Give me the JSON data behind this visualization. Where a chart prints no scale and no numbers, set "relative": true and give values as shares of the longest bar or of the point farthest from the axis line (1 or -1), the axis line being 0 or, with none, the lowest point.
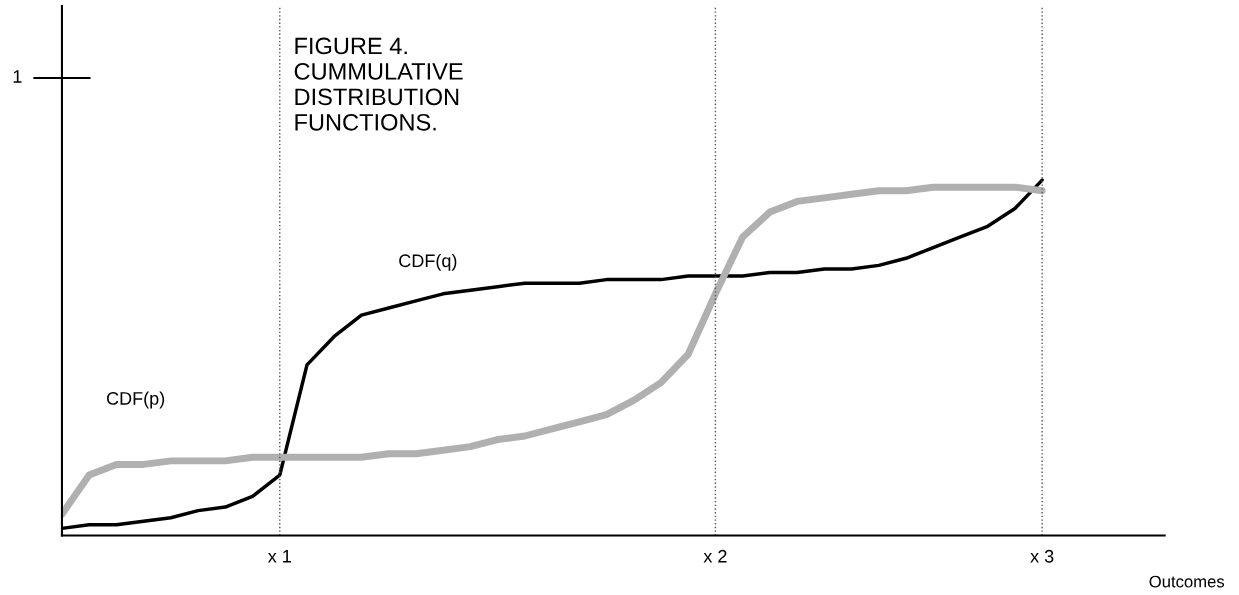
{
  "chart_data": {
    "type": "line",
    "title": "FIGURE 4.\nCUMMULATIVE\nDISTRIBUTION\nFUNCTIONS.",
    "xlabel": "Outcomes",
    "relative": true,
    "categories": [
      null,
      null,
      null,
      null,
      null,
      null,
      null,
      null,
      "x 1",
      null,
      null,
      null,
      null,
      null,
      null,
      null,
      null,
      null,
      null,
      null,
      null,
      null,
      null,
      null,
      "x 2",
      null,
      null,
      null,
      null,
      null,
      null,
      null,
      null,
      null,
      null,
      null,
      "x 3",
      null,
      null,
      null,
      null
    ],
    "grid": false,
    "legend": false,
    "marker": "none",
    "series": [
      {
        "color": "#000000",
        "line_style": "solid",
        "values": [
          0.02,
          0.03,
          0.03,
          0.04,
          0.05,
          0.07,
          0.08,
          0.11,
          0.17,
          0.48,
          0.56,
          0.62,
          0.64,
          0.66,
          0.68,
          0.69,
          0.7,
          0.71,
          0.71,
          0.71,
          0.72,
          0.72,
          0.72,
          0.73,
          0.73,
          0.73,
          0.74,
          0.74,
          0.75,
          0.75,
          0.76,
          0.78,
          0.81,
          0.84,
          0.87,
          0.92,
          1,
          null,
          null,
          null,
          null
        ]
      },
      {
        "color": "#b0b0b0",
        "line_style": "solid",
        "values": [
          0.06,
          0.17,
          0.2,
          0.2,
          0.21,
          0.21,
          0.21,
          0.22,
          0.22,
          0.22,
          0.22,
          0.22,
          0.23,
          0.23,
          0.24,
          0.25,
          0.27,
          0.28,
          0.3,
          0.32,
          0.34,
          0.38,
          0.43,
          0.51,
          0.68,
          0.84,
          0.91,
          0.94,
          0.95,
          0.96,
          0.97,
          0.97,
          0.98,
          0.98,
          0.98,
          0.98,
          0.97,
          null,
          null,
          null,
          null
        ]
      }
    ],
    "ref_lines": [
      {
        "axis": "x",
        "value": "x 1",
        "color": "#555555",
        "line_style": "dotted"
      },
      {
        "axis": "x",
        "value": "x 2",
        "color": "#555555",
        "line_style": "dotted"
      },
      {
        "axis": "x",
        "value": "x 3",
        "color": "#555555",
        "line_style": "dotted"
      }
    ],
    "annotations": [
      "1",
      "CDF(q)",
      "CDF(p)"
    ]
  }
}
